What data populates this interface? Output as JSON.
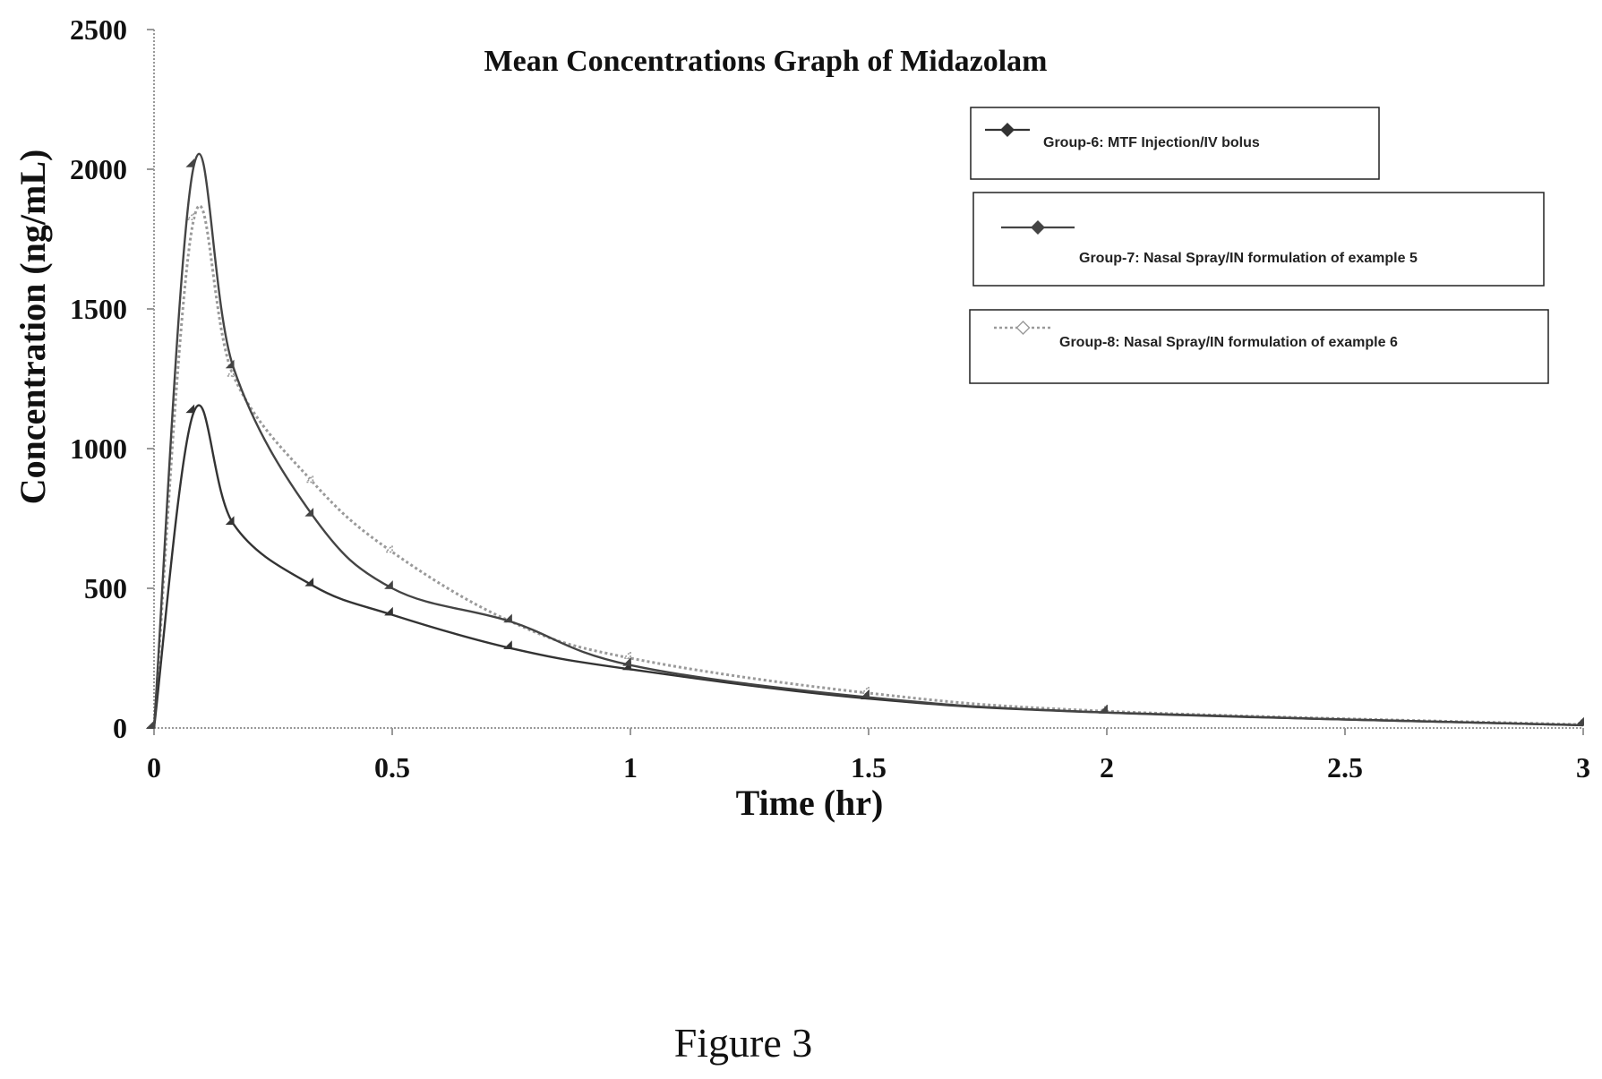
{
  "figure_caption": "Figure 3",
  "chart_data": {
    "type": "line",
    "title": "Mean Concentrations Graph of Midazolam",
    "xlabel": "Time (hr)",
    "ylabel": "Concentration (ng/mL)",
    "xlim": [
      0,
      3
    ],
    "ylim": [
      0,
      2500
    ],
    "x_ticks": [
      0,
      0.5,
      1,
      1.5,
      2,
      2.5,
      3
    ],
    "x_tick_labels": [
      "0",
      "0.5",
      "1",
      "1.5",
      "2",
      "2.5",
      "3"
    ],
    "y_ticks": [
      0,
      500,
      1000,
      1500,
      2000,
      2500
    ],
    "y_tick_labels": [
      "0",
      "500",
      "1000",
      "1500",
      "2000",
      "2500"
    ],
    "grid": false,
    "legend_position": "top-right",
    "series": [
      {
        "name": "Group-6: MTF Injection/IV bolus",
        "style": "solid-dark-markers",
        "color": "#333333",
        "x": [
          0,
          0.0833,
          0.1667,
          0.3333,
          0.5,
          0.75,
          1,
          1.5,
          2,
          3
        ],
        "y": [
          0,
          1130,
          730,
          510,
          405,
          285,
          210,
          105,
          55,
          10
        ]
      },
      {
        "name": "Group-7: Nasal Spray/IN formulation of example 5",
        "style": "solid-dark-markers",
        "color": "#444444",
        "x": [
          0,
          0.0833,
          0.1667,
          0.3333,
          0.5,
          0.75,
          1,
          1.5,
          2,
          3
        ],
        "y": [
          0,
          2010,
          1290,
          760,
          500,
          380,
          225,
          110,
          55,
          10
        ]
      },
      {
        "name": "Group-8: Nasal Spray/IN formulation of example 6",
        "style": "dotted-light",
        "color": "#9a9a9a",
        "x": [
          0,
          0.0833,
          0.1667,
          0.3333,
          0.5,
          0.75,
          1,
          1.5,
          2,
          3
        ],
        "y": [
          0,
          1820,
          1260,
          880,
          630,
          380,
          250,
          125,
          60,
          12
        ]
      }
    ]
  }
}
